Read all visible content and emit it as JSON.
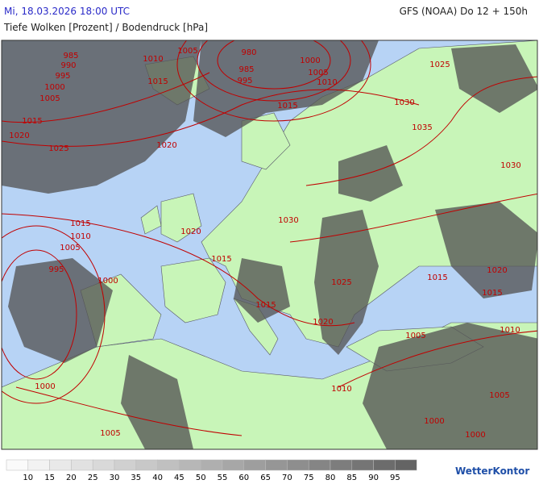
{
  "header": {
    "datetime": "Mi, 18.03.2026 18:00 UTC",
    "model": "GFS (NOAA) Do 12 + 150h",
    "subtitle": "Tiefe Wolken [Prozent] / Bodendruck [hPa]"
  },
  "map": {
    "isobar_labels": [
      985,
      990,
      995,
      1000,
      1005,
      1010,
      1005,
      1015,
      980,
      985,
      995,
      1000,
      1005,
      1010,
      1025,
      1015,
      1030,
      1035,
      1015,
      1020,
      1025,
      1020,
      1030,
      1030,
      1015,
      1010,
      1005,
      1020,
      995,
      1000,
      1015,
      1025,
      1015,
      1020,
      1015,
      1015,
      1020,
      1010,
      1005,
      1010,
      1005,
      1000,
      1000,
      1000,
      1005
    ]
  },
  "legend": {
    "labels": [
      10,
      15,
      20,
      25,
      30,
      35,
      40,
      45,
      50,
      55,
      60,
      65,
      70,
      75,
      80,
      85,
      90,
      95
    ]
  },
  "brand": "WetterKontor"
}
